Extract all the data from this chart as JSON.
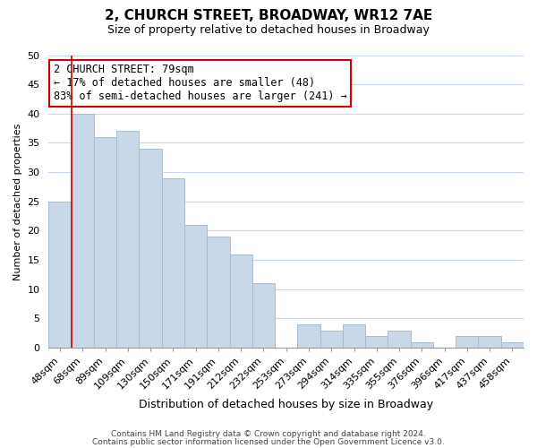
{
  "title": "2, CHURCH STREET, BROADWAY, WR12 7AE",
  "subtitle": "Size of property relative to detached houses in Broadway",
  "xlabel": "Distribution of detached houses by size in Broadway",
  "ylabel": "Number of detached properties",
  "footer_lines": [
    "Contains HM Land Registry data © Crown copyright and database right 2024.",
    "Contains public sector information licensed under the Open Government Licence v3.0."
  ],
  "bar_labels": [
    "48sqm",
    "68sqm",
    "89sqm",
    "109sqm",
    "130sqm",
    "150sqm",
    "171sqm",
    "191sqm",
    "212sqm",
    "232sqm",
    "253sqm",
    "273sqm",
    "294sqm",
    "314sqm",
    "335sqm",
    "355sqm",
    "376sqm",
    "396sqm",
    "417sqm",
    "437sqm",
    "458sqm"
  ],
  "bar_values": [
    25,
    40,
    36,
    37,
    34,
    29,
    21,
    19,
    16,
    11,
    0,
    4,
    3,
    4,
    2,
    3,
    1,
    0,
    2,
    2,
    1
  ],
  "bar_color": "#c8d8e8",
  "bar_edge_color": "#a8bece",
  "grid_color": "#c8d8e8",
  "ylim": [
    0,
    50
  ],
  "yticks": [
    0,
    5,
    10,
    15,
    20,
    25,
    30,
    35,
    40,
    45,
    50
  ],
  "marker_bar_index": 1,
  "marker_color": "#cc0000",
  "annotation_line1": "2 CHURCH STREET: 79sqm",
  "annotation_line2": "← 17% of detached houses are smaller (48)",
  "annotation_line3": "83% of semi-detached houses are larger (241) →",
  "annotation_box_color": "#ffffff",
  "annotation_box_edge": "#cc0000",
  "bg_color": "#ffffff",
  "title_fontsize": 11,
  "subtitle_fontsize": 9,
  "annotation_fontsize": 8.5,
  "ylabel_fontsize": 8,
  "xlabel_fontsize": 9,
  "tick_fontsize": 8,
  "footer_fontsize": 6.5
}
